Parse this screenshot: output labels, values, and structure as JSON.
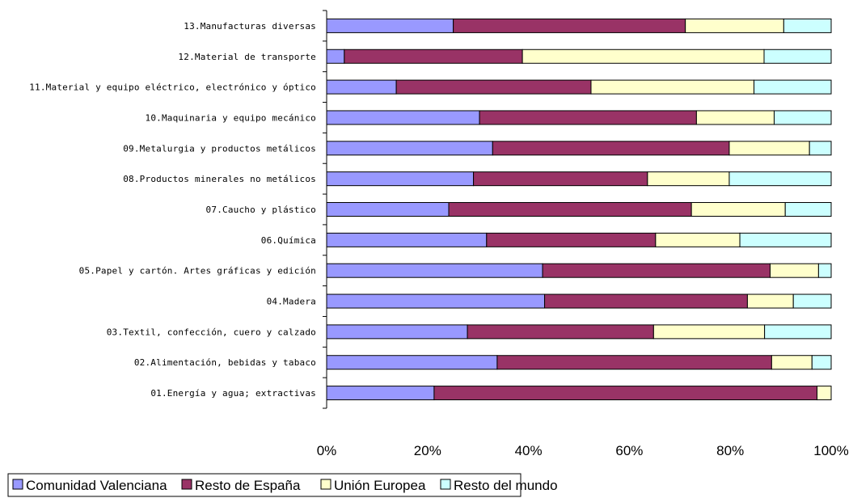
{
  "chart_data": {
    "type": "bar",
    "orientation": "horizontal",
    "stacked": "percent",
    "categories": [
      "01.Energía y agua; extractivas",
      "02.Alimentación, bebidas y tabaco",
      "03.Textil, confección, cuero y calzado",
      "04.Madera",
      "05.Papel y cartón. Artes gráficas y edición",
      "06.Química",
      "07.Caucho y plástico",
      "08.Productos minerales no metálicos",
      "09.Metalurgia y productos metálicos",
      "10.Maquinaria y equipo mecánico",
      "11.Material y equipo eléctrico, electrónico y óptico",
      "12.Material de transporte",
      "13.Manufacturas diversas"
    ],
    "series": [
      {
        "name": "Comunidad Valenciana",
        "color": "#9999ff",
        "values": [
          21.3,
          33.8,
          27.9,
          43.2,
          42.8,
          31.7,
          24.2,
          29.1,
          32.9,
          30.3,
          13.8,
          3.5,
          25.1
        ]
      },
      {
        "name": "Resto de España",
        "color": "#993366",
        "values": [
          75.9,
          54.4,
          36.9,
          40.2,
          45.1,
          33.5,
          48.1,
          34.5,
          46.9,
          43.0,
          38.6,
          35.3,
          46.0
        ]
      },
      {
        "name": "Unión Europea",
        "color": "#ffffcc",
        "values": [
          2.8,
          8.0,
          22.0,
          9.1,
          9.6,
          16.7,
          18.6,
          16.2,
          15.9,
          15.4,
          32.3,
          47.9,
          19.5
        ]
      },
      {
        "name": "Resto del mundo",
        "color": "#ccffff",
        "values": [
          0.0,
          3.8,
          13.2,
          7.5,
          2.5,
          18.1,
          9.1,
          20.2,
          4.3,
          11.3,
          15.3,
          13.3,
          9.4
        ]
      }
    ],
    "xlim": [
      0,
      100
    ],
    "xticks": [
      "0%",
      "20%",
      "40%",
      "60%",
      "80%",
      "100%"
    ],
    "title": "",
    "xlabel": "",
    "ylabel": "",
    "grid": false,
    "legend_position": "bottom-left"
  }
}
